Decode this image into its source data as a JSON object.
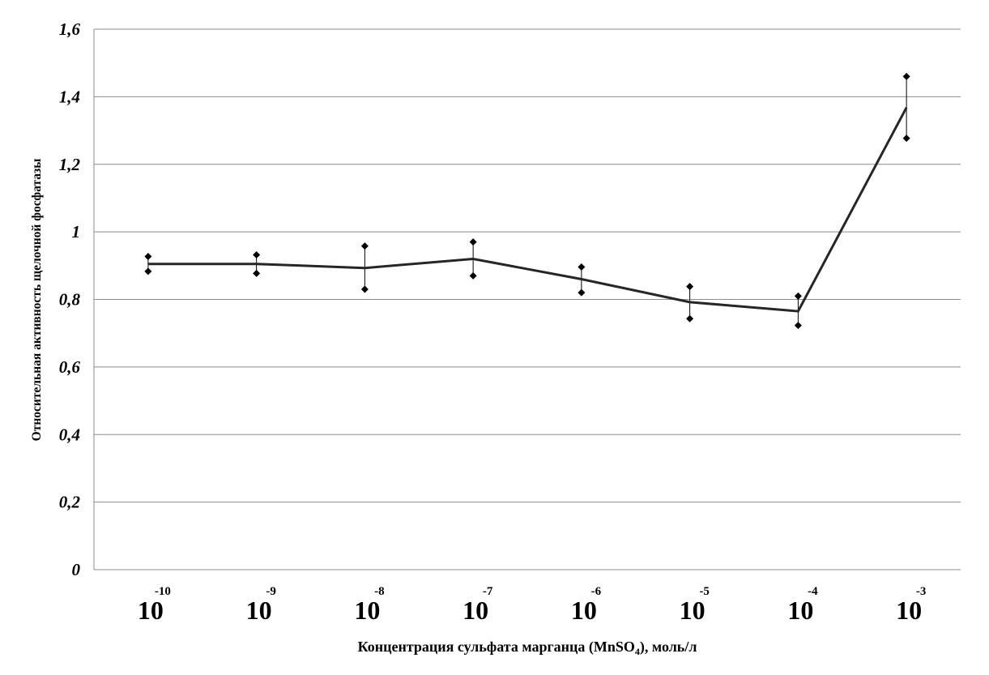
{
  "chart_data": {
    "type": "line",
    "title": "",
    "ylabel": "Относительная активность щелочной фосфатазы",
    "xlabel": {
      "prefix": "Концентрация сульфата марганца (MnSO",
      "subscript": "4",
      "suffix": "), моль/л"
    },
    "ylim": [
      0,
      1.6
    ],
    "yticks": [
      "0",
      "0,2",
      "0,4",
      "0,6",
      "0,8",
      "1",
      "1,2",
      "1,4",
      "1,6"
    ],
    "ytick_values": [
      0,
      0.2,
      0.4,
      0.6,
      0.8,
      1.0,
      1.2,
      1.4,
      1.6
    ],
    "grid": true,
    "categories": [
      {
        "base": "10",
        "exp": "-10"
      },
      {
        "base": "10",
        "exp": "-9"
      },
      {
        "base": "10",
        "exp": "-8"
      },
      {
        "base": "10",
        "exp": "-7"
      },
      {
        "base": "10",
        "exp": "-6"
      },
      {
        "base": "10",
        "exp": "-5"
      },
      {
        "base": "10",
        "exp": "-4"
      },
      {
        "base": "10",
        "exp": "-3"
      }
    ],
    "series": [
      {
        "name": "Относительная активность",
        "values": [
          0.905,
          0.905,
          0.893,
          0.92,
          0.86,
          0.792,
          0.765,
          1.368
        ],
        "upper": [
          0.927,
          0.932,
          0.958,
          0.97,
          0.896,
          0.838,
          0.81,
          1.46
        ],
        "lower": [
          0.883,
          0.877,
          0.83,
          0.87,
          0.82,
          0.743,
          0.723,
          1.277
        ]
      }
    ]
  },
  "colors": {
    "line": "#262626",
    "grid": "#8c8c8c",
    "marker": "#000000",
    "errorbar": "#000000"
  }
}
